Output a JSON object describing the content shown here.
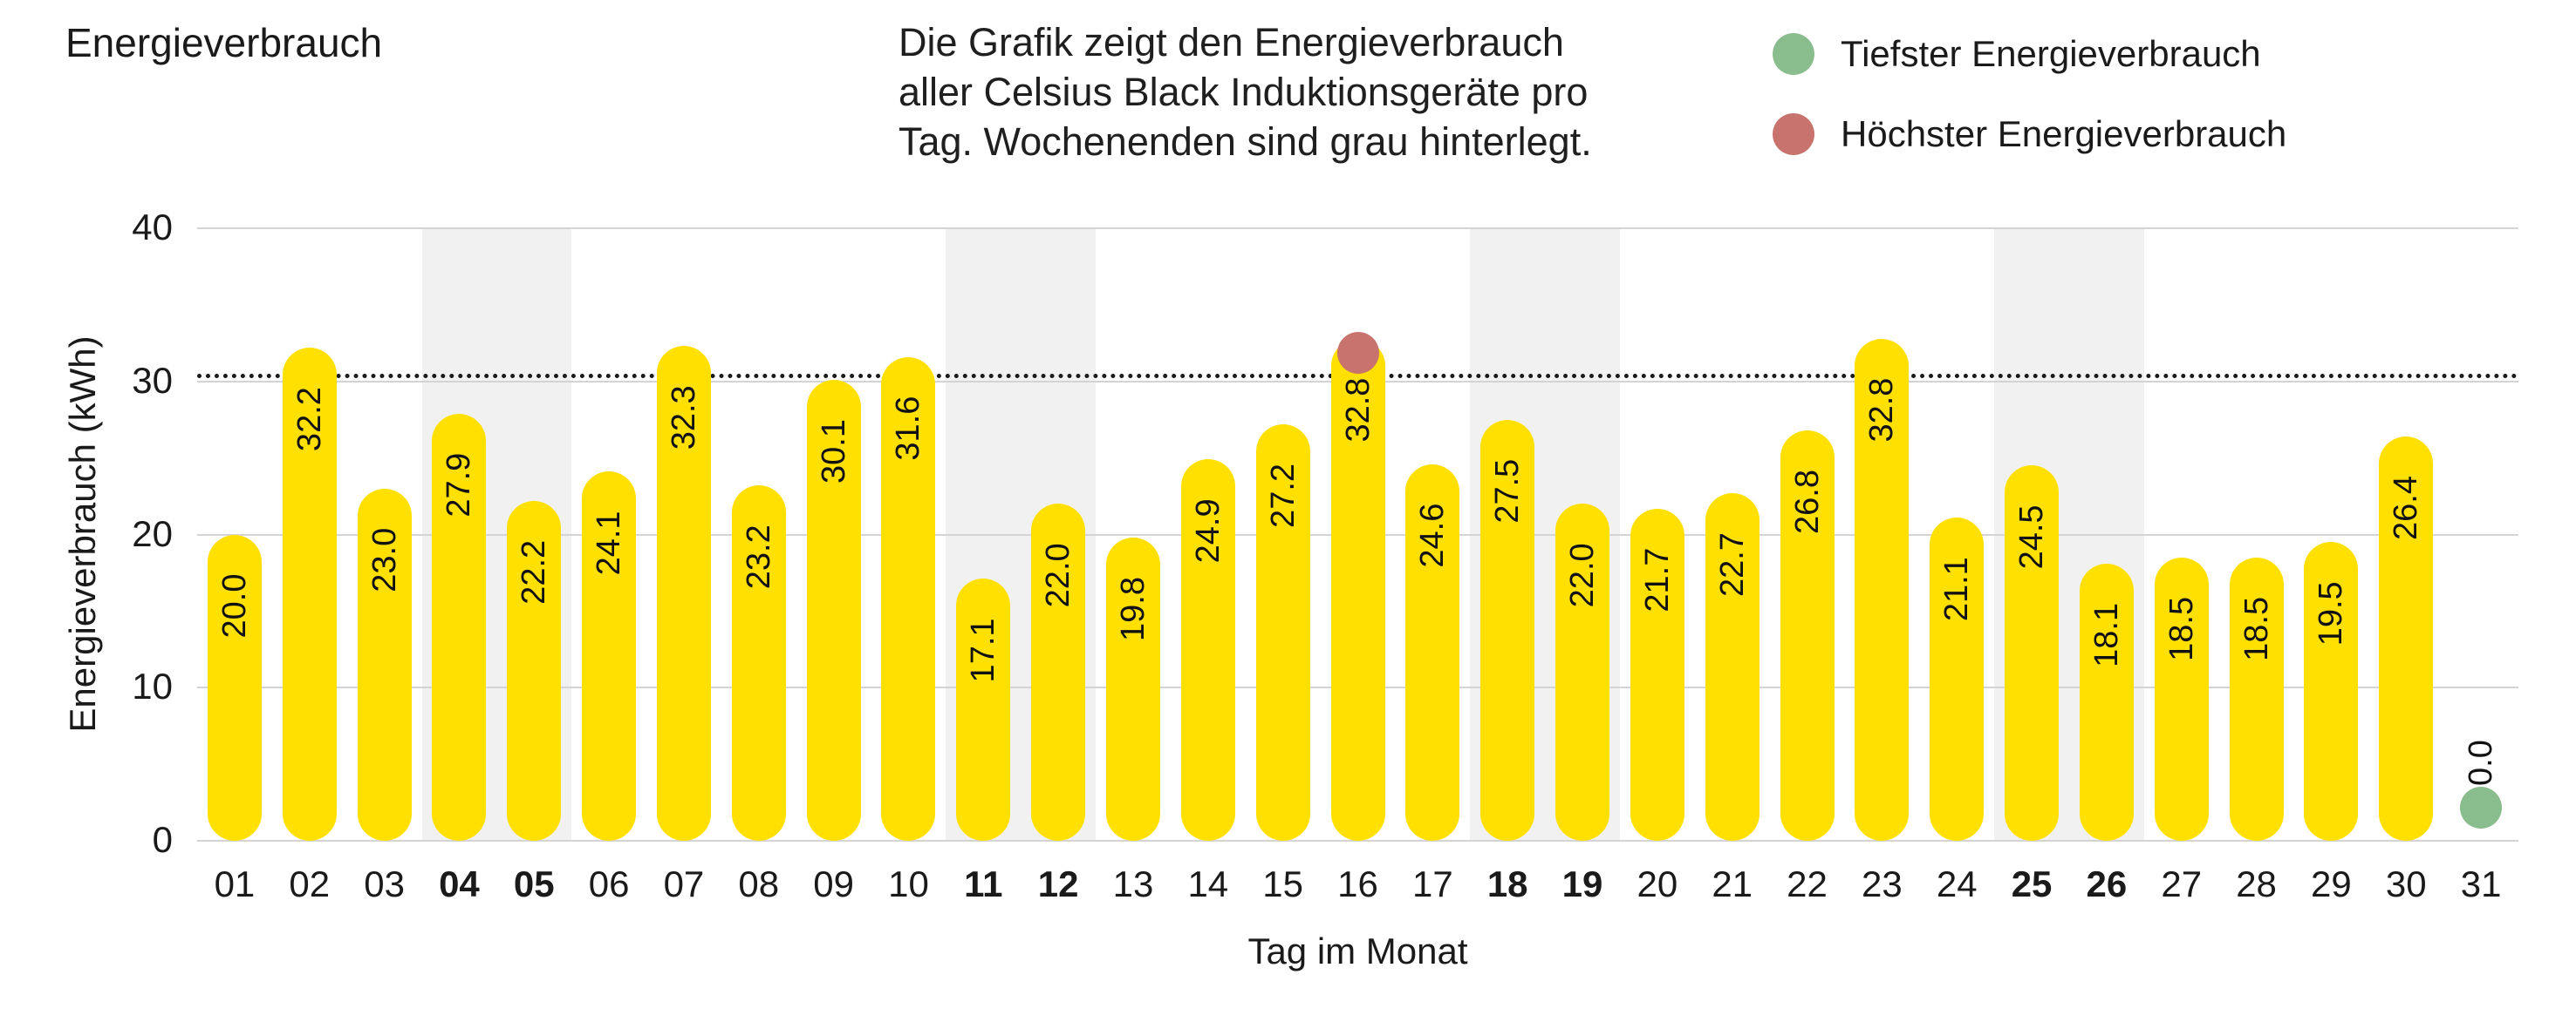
{
  "header": {
    "title": "Energieverbrauch",
    "description_lines": [
      "Die Grafik zeigt den Energieverbrauch",
      "aller Celsius Black Induktionsgeräte pro",
      "Tag. Wochenenden sind grau hinterlegt."
    ],
    "legend": [
      {
        "label": "Tiefster Energieverbrauch",
        "color": "#89BD8D"
      },
      {
        "label": "Höchster Energieverbrauch",
        "color": "#C8736D"
      }
    ]
  },
  "chart_data": {
    "type": "bar",
    "title": "Energieverbrauch",
    "xlabel": "Tag im Monat",
    "ylabel": "Energieverbrauch (kWh)",
    "ylim": [
      0,
      40
    ],
    "yticks": [
      0,
      10,
      20,
      30,
      40
    ],
    "grid": true,
    "legend_position": "top-right",
    "categories": [
      "01",
      "02",
      "03",
      "04",
      "05",
      "06",
      "07",
      "08",
      "09",
      "10",
      "11",
      "12",
      "13",
      "14",
      "15",
      "16",
      "17",
      "18",
      "19",
      "20",
      "21",
      "22",
      "23",
      "24",
      "25",
      "26",
      "27",
      "28",
      "29",
      "30",
      "31"
    ],
    "values": [
      20.0,
      32.2,
      23.0,
      27.9,
      22.2,
      24.1,
      32.3,
      23.2,
      30.1,
      31.6,
      17.1,
      22.0,
      19.8,
      24.9,
      27.2,
      32.8,
      24.6,
      27.5,
      22.0,
      21.7,
      22.7,
      26.8,
      32.8,
      21.1,
      24.5,
      18.1,
      18.5,
      18.5,
      19.5,
      26.4,
      0.0
    ],
    "weekend_days": [
      4,
      5,
      11,
      12,
      18,
      19,
      25,
      26
    ],
    "dotted_line_y": 30.5,
    "max_marker": {
      "day": 16,
      "value": 32.8,
      "meaning": "Höchster Energieverbrauch"
    },
    "min_marker": {
      "day": 31,
      "value": 0.0,
      "meaning": "Tiefster Energieverbrauch"
    },
    "bar_color": "#FFE000",
    "weekend_band_color": "#F1F1F1",
    "min_color": "#89BD8D",
    "max_color": "#C8736D"
  }
}
